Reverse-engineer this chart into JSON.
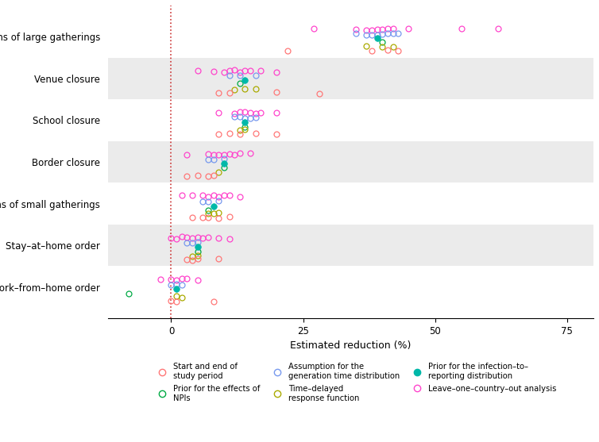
{
  "categories": [
    "Bans of large gatherings",
    "Venue closure",
    "School closure",
    "Border closure",
    "Bans of small gatherings",
    "Stay–at–home order",
    "Work–from–home order"
  ],
  "xlabel": "Estimated reduction (%)",
  "xlim": [
    -12,
    80
  ],
  "xticks": [
    0,
    25,
    50,
    75
  ],
  "shaded_rows_indices": [
    1,
    3,
    5
  ],
  "shaded_color": "#EBEBEB",
  "background_color": "#FFFFFF",
  "color_map": {
    "magenta": "#FF44CC",
    "blue": "#7799EE",
    "teal": "#00B8A9",
    "green": "#00AA44",
    "olive": "#AAAA00",
    "red": "#FF7777"
  },
  "data": {
    "Bans of large gatherings": {
      "magenta": [
        27,
        35,
        37,
        38,
        39,
        40,
        41,
        42,
        45,
        55,
        62
      ],
      "blue": [
        35,
        37,
        38,
        39,
        40,
        41,
        42,
        43
      ],
      "teal": [
        39
      ],
      "green": [
        40
      ],
      "olive": [
        37,
        40,
        42
      ],
      "red": [
        22,
        38,
        41,
        43
      ]
    },
    "Venue closure": {
      "magenta": [
        5,
        8,
        10,
        11,
        12,
        13,
        14,
        15,
        17,
        20
      ],
      "blue": [
        11,
        13,
        16
      ],
      "teal": [
        14
      ],
      "green": [
        13
      ],
      "olive": [
        12,
        14,
        16
      ],
      "red": [
        9,
        11,
        20,
        28
      ]
    },
    "School closure": {
      "magenta": [
        9,
        12,
        13,
        14,
        15,
        16,
        17,
        20
      ],
      "blue": [
        12,
        13,
        14,
        15,
        16
      ],
      "teal": [
        14
      ],
      "green": [
        14
      ],
      "olive": [
        13,
        14
      ],
      "red": [
        9,
        11,
        13,
        16,
        20
      ]
    },
    "Border closure": {
      "magenta": [
        3,
        7,
        8,
        9,
        10,
        11,
        12,
        13,
        15
      ],
      "blue": [
        7,
        8,
        10
      ],
      "teal": [
        10
      ],
      "green": [
        10
      ],
      "olive": [
        9
      ],
      "red": [
        3,
        5,
        7,
        8
      ]
    },
    "Bans of small gatherings": {
      "magenta": [
        2,
        4,
        6,
        7,
        8,
        9,
        10,
        11,
        13
      ],
      "blue": [
        6,
        7,
        9
      ],
      "teal": [
        8
      ],
      "green": [
        7
      ],
      "olive": [
        7,
        8,
        9
      ],
      "red": [
        4,
        6,
        7,
        9,
        11
      ]
    },
    "Stay–at–home order": {
      "magenta": [
        0,
        1,
        2,
        3,
        4,
        5,
        6,
        7,
        9,
        11
      ],
      "blue": [
        3,
        4,
        5
      ],
      "teal": [
        5
      ],
      "green": [
        5
      ],
      "olive": [
        4,
        5
      ],
      "red": [
        3,
        4,
        5,
        9
      ]
    },
    "Work–from–home order": {
      "magenta": [
        -2,
        0,
        1,
        2,
        3,
        5
      ],
      "blue": [
        0,
        1,
        2
      ],
      "teal": [
        1
      ],
      "green": [
        -8
      ],
      "olive": [
        1,
        2
      ],
      "red": [
        0,
        1,
        8
      ]
    }
  },
  "legend_entries": [
    {
      "key": "red",
      "label": "Start and end of\nstudy period"
    },
    {
      "key": "green",
      "label": "Prior for the effects of\nNPIs"
    },
    {
      "key": "blue",
      "label": "Assumption for the\ngeneration time distribution"
    },
    {
      "key": "olive",
      "label": "Time–delayed\nresponse function"
    },
    {
      "key": "teal",
      "label": "Prior for the infection–to–\nreporting distribution"
    },
    {
      "key": "magenta",
      "label": "Leave–one–country–out analysis"
    }
  ],
  "row_offsets": {
    "magenta": 0.18,
    "blue": 0.06,
    "teal": -0.04,
    "green": -0.14,
    "olive": -0.24,
    "red": -0.34
  }
}
